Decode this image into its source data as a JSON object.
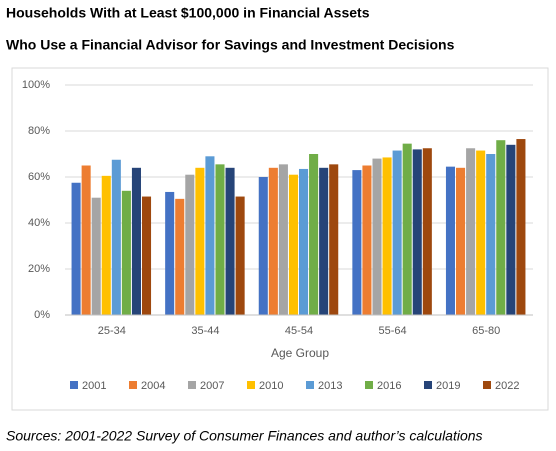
{
  "chart_data": {
    "type": "bar",
    "title": "Households With at Least $100,000 in Financial Assets",
    "subtitle": "Who Use a Financial Advisor for Savings and Investment Decisions",
    "x_label": "Age Group",
    "source": "Sources: 2001-2022 Survey of Consumer Finances and author’s calculations",
    "categories": [
      "25-34",
      "35-44",
      "45-54",
      "55-64",
      "65-80"
    ],
    "series": [
      {
        "name": "2001",
        "color": "#4472c4",
        "values": [
          57.5,
          53.5,
          60,
          63,
          64.5
        ]
      },
      {
        "name": "2004",
        "color": "#ed7d31",
        "values": [
          65,
          50.5,
          64,
          65,
          64
        ]
      },
      {
        "name": "2007",
        "color": "#a5a5a5",
        "values": [
          51,
          61,
          65.5,
          68,
          72.5
        ]
      },
      {
        "name": "2010",
        "color": "#ffc000",
        "values": [
          60.5,
          64,
          61,
          68.5,
          71.5
        ]
      },
      {
        "name": "2013",
        "color": "#5b9bd5",
        "values": [
          67.5,
          69,
          63.5,
          71.5,
          70
        ]
      },
      {
        "name": "2016",
        "color": "#70ad47",
        "values": [
          54,
          65.5,
          70,
          74.5,
          76
        ]
      },
      {
        "name": "2019",
        "color": "#264478",
        "values": [
          64,
          64,
          64,
          72,
          74
        ]
      },
      {
        "name": "2022",
        "color": "#9e480e",
        "values": [
          51.5,
          51.5,
          65.5,
          72.5,
          76.5
        ]
      }
    ],
    "ylim": [
      0,
      100
    ],
    "yticks": [
      {
        "value": 0,
        "label": "0%"
      },
      {
        "value": 20,
        "label": "20%"
      },
      {
        "value": 40,
        "label": "40%"
      },
      {
        "value": 60,
        "label": "60%"
      },
      {
        "value": 80,
        "label": "80%"
      },
      {
        "value": 100,
        "label": "100%"
      }
    ],
    "grid": true,
    "legend": "bottom"
  }
}
